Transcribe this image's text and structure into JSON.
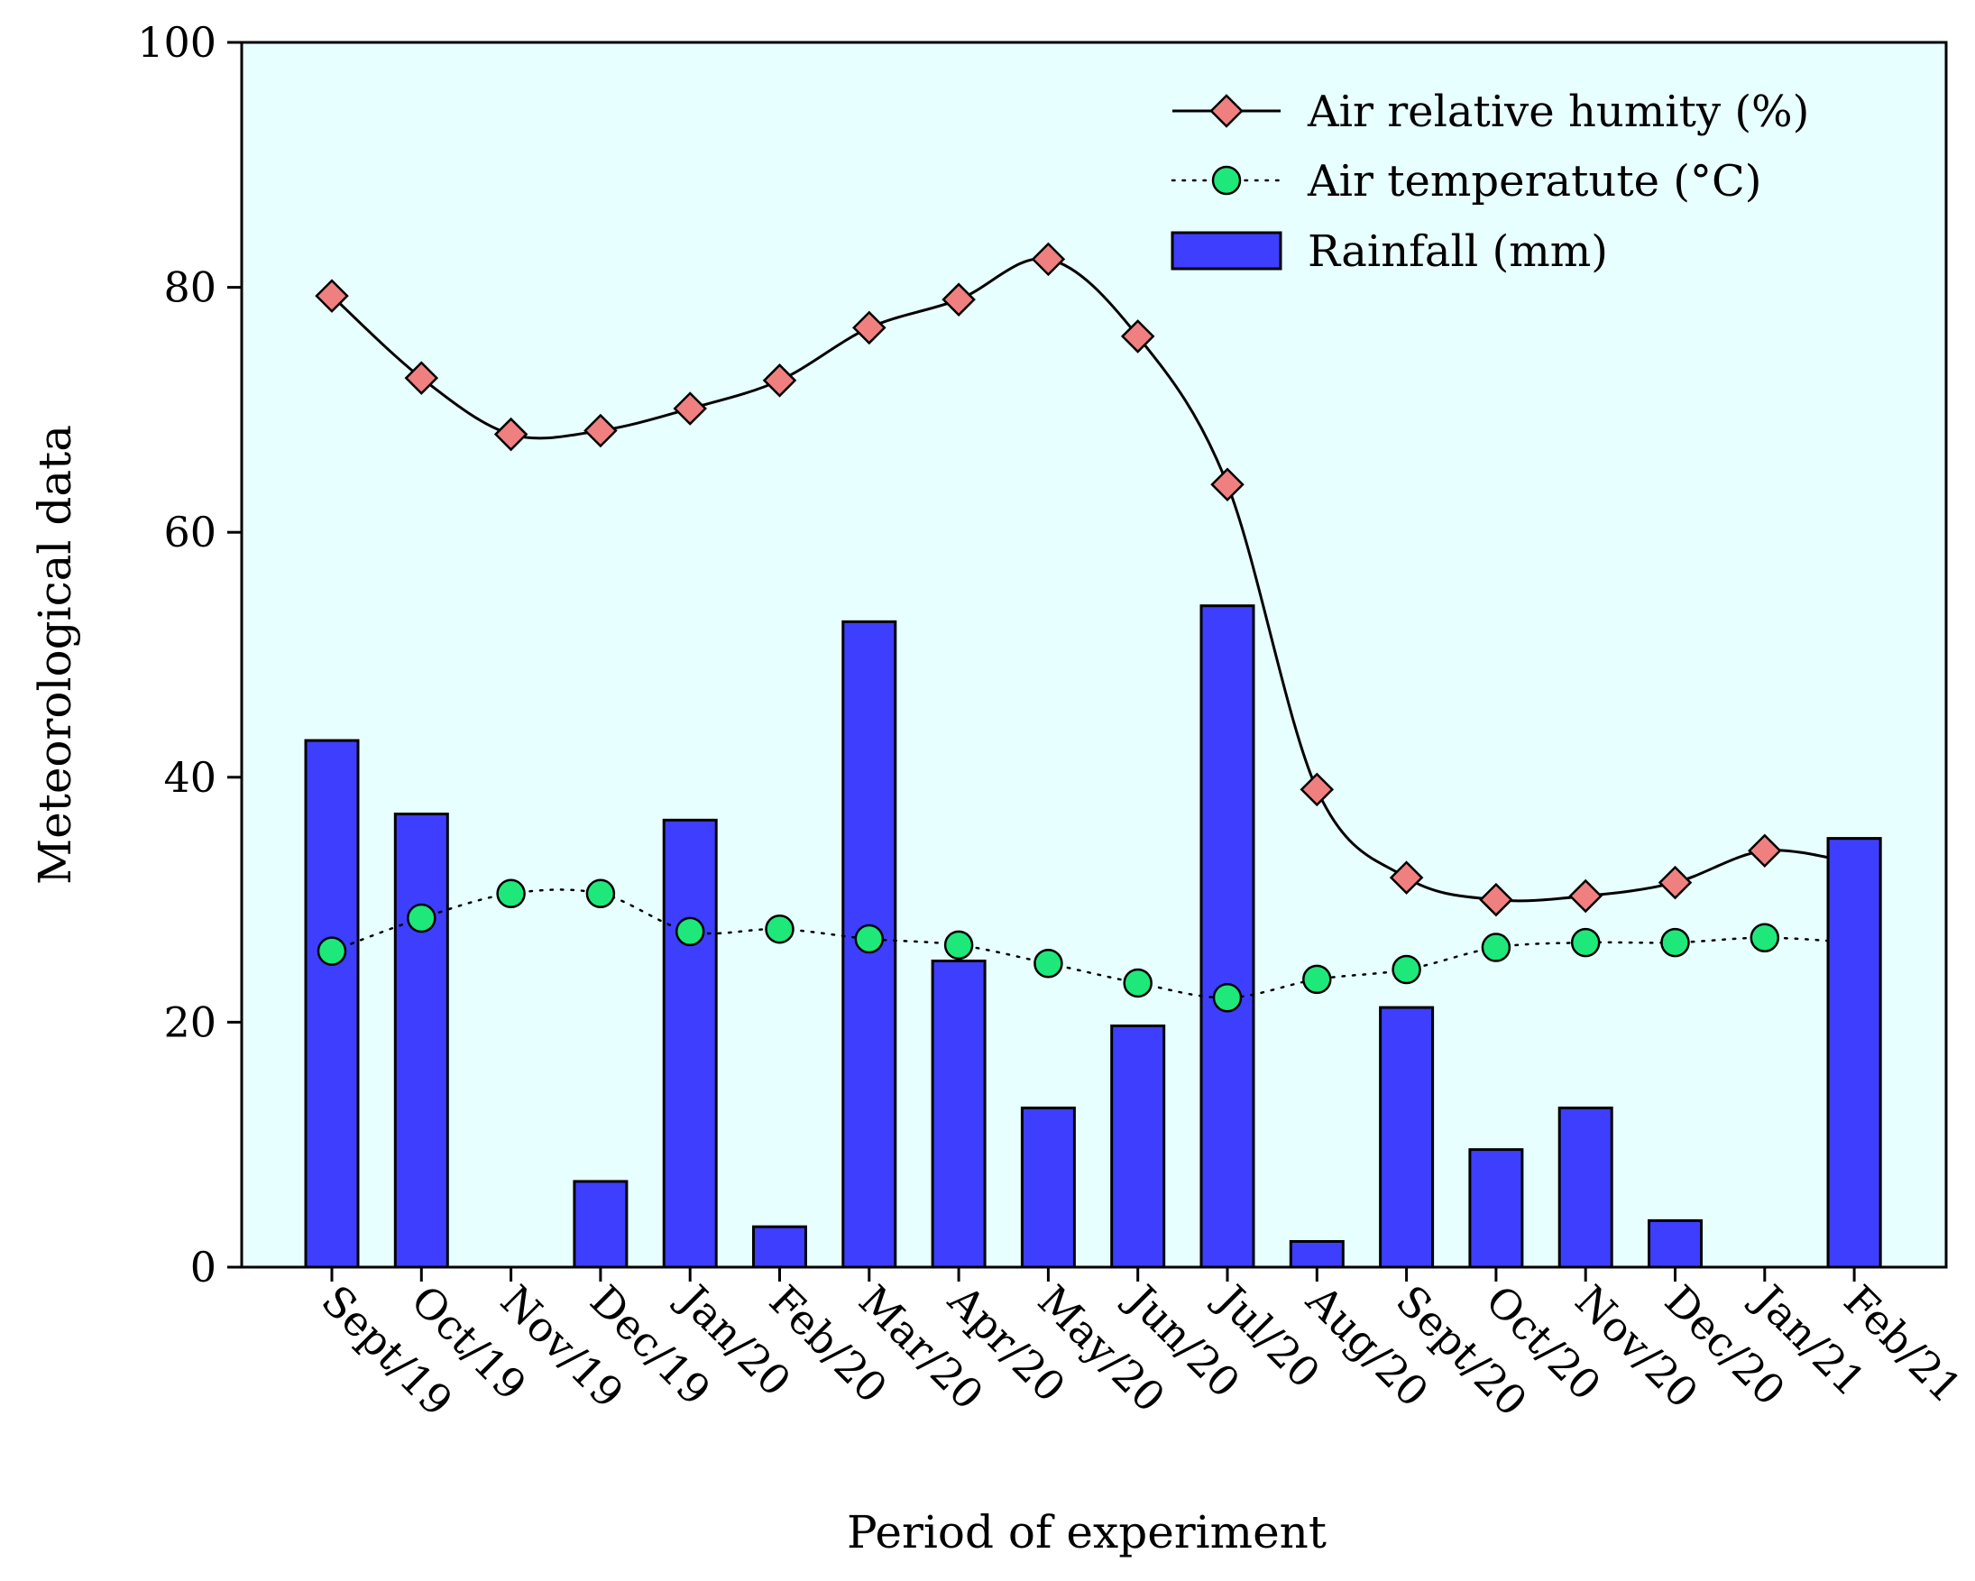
{
  "chart_data": {
    "type": "bar+line",
    "title": "",
    "xlabel": "Period of experiment",
    "ylabel": "Meteorological data",
    "ylim": [
      0,
      100
    ],
    "yticks": [
      0,
      20,
      40,
      60,
      80,
      100
    ],
    "grid": false,
    "legend_position": "top-right",
    "categories": [
      "Sept/19",
      "Oct/19",
      "Nov/19",
      "Dec/19",
      "Jan/20",
      "Feb/20",
      "Mar/20",
      "Apr/20",
      "May/20",
      "Jun/20",
      "Jul/20",
      "Aug/20",
      "Sept/20",
      "Oct/20",
      "Nov/20",
      "Dec/20",
      "Jan/21",
      "Feb/21"
    ],
    "series": [
      {
        "name": "Air relative humity (%)",
        "kind": "line",
        "marker": "diamond",
        "line_style": "solid",
        "color": "#f08080",
        "values": [
          79.3,
          72.6,
          68.0,
          68.3,
          70.1,
          72.4,
          76.7,
          79.0,
          82.3,
          76.0,
          63.9,
          39.0,
          31.8,
          30.0,
          30.3,
          31.4,
          34.0,
          33.0
        ]
      },
      {
        "name": "Air temperatute (°C)",
        "kind": "line",
        "marker": "circle",
        "line_style": "dotted",
        "color": "#1ee87a",
        "values": [
          25.8,
          28.5,
          30.5,
          30.5,
          27.4,
          27.6,
          26.8,
          26.3,
          24.8,
          23.2,
          22.0,
          23.5,
          24.3,
          26.1,
          26.5,
          26.5,
          26.9,
          26.5
        ]
      },
      {
        "name": "Rainfall (mm)",
        "kind": "bar",
        "color": "#3e3eff",
        "values": [
          43.0,
          37.0,
          0,
          7.0,
          36.5,
          3.3,
          52.7,
          25.0,
          13.0,
          19.7,
          54.0,
          2.1,
          21.2,
          9.6,
          13.0,
          3.8,
          0,
          35.0
        ]
      }
    ],
    "plot_background": "#e8ffff"
  }
}
